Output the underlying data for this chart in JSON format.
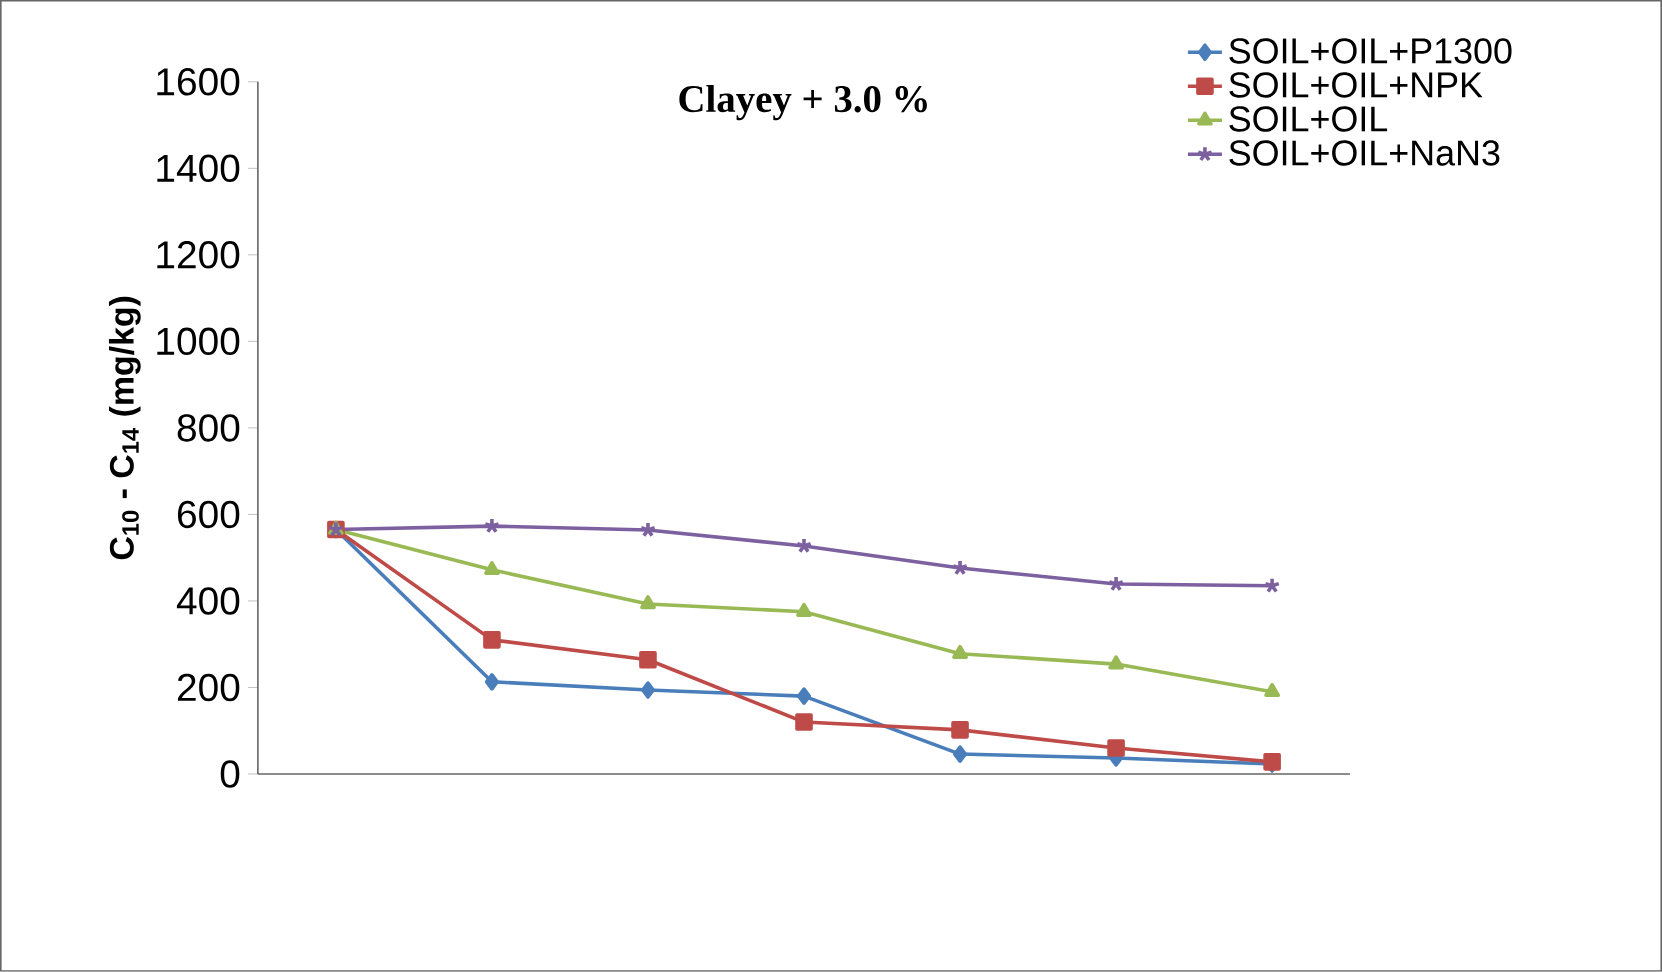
{
  "chart_data": {
    "type": "line",
    "title": "Clayey + 3.0 %",
    "ylabel": "C$_{10}$ - C$_{14}$ (mg/kg)",
    "categories": [
      null,
      null,
      null,
      null,
      null,
      null,
      null
    ],
    "ylim": [
      0,
      1600
    ],
    "yticks": [
      0,
      200,
      400,
      600,
      800,
      1000,
      1200,
      1400,
      1600
    ],
    "grid": false,
    "legend": "top right",
    "line_style": "solid",
    "series": [
      {
        "name": "SOIL+OIL+P1300",
        "color": "#4a7ebb",
        "marker": "diamond",
        "values": [
          565,
          213,
          194,
          180,
          46,
          37,
          23
        ]
      },
      {
        "name": "SOIL+OIL+NPK",
        "color": "#be4b48",
        "marker": "square",
        "values": [
          565,
          310,
          264,
          120,
          102,
          60,
          28
        ]
      },
      {
        "name": "SOIL+OIL",
        "color": "#98b954",
        "marker": "triangle",
        "values": [
          565,
          472,
          393,
          375,
          278,
          254,
          190
        ]
      },
      {
        "name": "SOIL+OIL+NaN3",
        "color": "#7d60a0",
        "marker": "cross",
        "values": [
          565,
          573,
          564,
          527,
          476,
          439,
          435
        ]
      }
    ]
  }
}
